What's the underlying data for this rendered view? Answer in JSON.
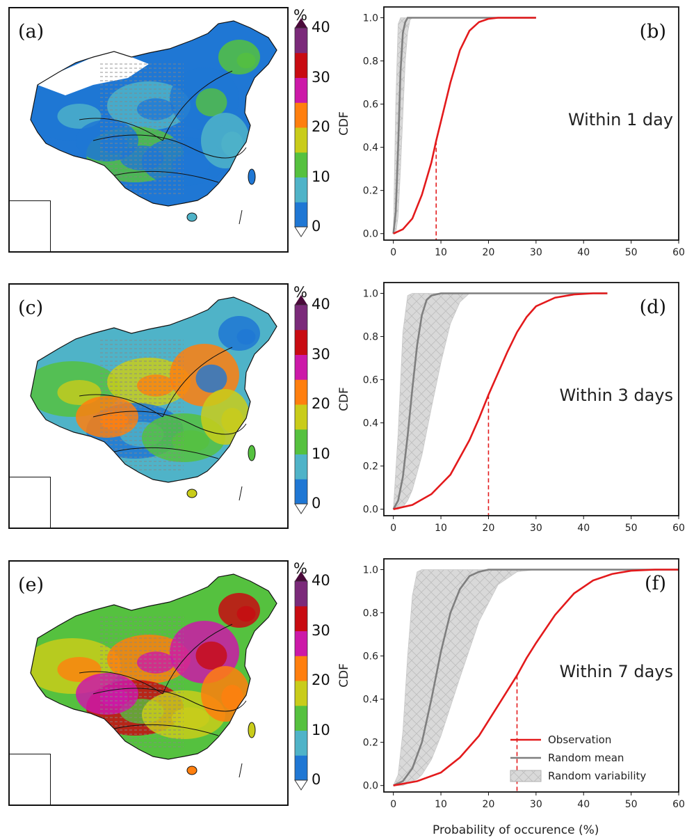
{
  "colors": {
    "observation": "#e31a1c",
    "random_mean": "#7f7f7f",
    "variability_fill": "#d9d9d9",
    "colorbar": [
      "#1f77d4",
      "#4fb3c8",
      "#55c13f",
      "#c9cc1a",
      "#ff7f0e",
      "#cc19a8",
      "#c80b12",
      "#7b2a7a",
      "#4a0a3a"
    ]
  },
  "maps": [
    {
      "letter": "(a)"
    },
    {
      "letter": "(c)"
    },
    {
      "letter": "(e)"
    }
  ],
  "colorbar": {
    "unit": "%",
    "ticks": [
      "0",
      "10",
      "20",
      "30",
      "40"
    ]
  },
  "chart_data": [
    {
      "type": "line",
      "panel_letter": "(b)",
      "annotation": "Within 1 day",
      "xlabel": "",
      "ylabel": "CDF",
      "xlim": [
        -2,
        60
      ],
      "ylim": [
        -0.03,
        1.05
      ],
      "xticks": [
        "0",
        "10",
        "20",
        "30",
        "40",
        "50",
        "60"
      ],
      "yticks": [
        "0.0",
        "0.2",
        "0.4",
        "0.6",
        "0.8",
        "1.0"
      ],
      "series": [
        {
          "name": "Observation",
          "x": [
            0,
            2,
            4,
            6,
            8,
            9,
            10,
            12,
            14,
            16,
            18,
            20,
            22,
            24,
            26,
            28,
            30
          ],
          "y": [
            0.0,
            0.02,
            0.07,
            0.18,
            0.33,
            0.43,
            0.52,
            0.7,
            0.85,
            0.94,
            0.98,
            0.995,
            1.0,
            1.0,
            1.0,
            1.0,
            1.0
          ]
        },
        {
          "name": "Random mean",
          "x": [
            0,
            0.5,
            1,
            1.5,
            2,
            2.5,
            3,
            4,
            30
          ],
          "y": [
            0.0,
            0.1,
            0.4,
            0.75,
            0.93,
            0.98,
            1.0,
            1.0,
            1.0
          ]
        }
      ],
      "variability_band": {
        "name": "Random variability",
        "x": [
          0,
          0.5,
          1,
          1.5,
          2,
          2.5,
          3,
          3.5,
          4
        ],
        "lower": [
          0.0,
          0.0,
          0.08,
          0.3,
          0.55,
          0.8,
          0.93,
          0.99,
          1.0
        ],
        "upper": [
          0.0,
          0.6,
          0.97,
          1.0,
          1.0,
          1.0,
          1.0,
          1.0,
          1.0
        ]
      },
      "dashed_marker": {
        "x": 9,
        "y": 0.43
      },
      "legend": false
    },
    {
      "type": "line",
      "panel_letter": "(d)",
      "annotation": "Within 3 days",
      "xlabel": "",
      "ylabel": "CDF",
      "xlim": [
        -2,
        60
      ],
      "ylim": [
        -0.03,
        1.05
      ],
      "xticks": [
        "0",
        "10",
        "20",
        "30",
        "40",
        "50",
        "60"
      ],
      "yticks": [
        "0.0",
        "0.2",
        "0.4",
        "0.6",
        "0.8",
        "1.0"
      ],
      "series": [
        {
          "name": "Observation",
          "x": [
            0,
            4,
            8,
            12,
            16,
            18,
            20,
            22,
            24,
            26,
            28,
            30,
            34,
            38,
            42,
            45
          ],
          "y": [
            0.0,
            0.02,
            0.07,
            0.16,
            0.32,
            0.42,
            0.53,
            0.63,
            0.73,
            0.82,
            0.89,
            0.94,
            0.98,
            0.995,
            1.0,
            1.0
          ]
        },
        {
          "name": "Random mean",
          "x": [
            0,
            1,
            2,
            3,
            4,
            5,
            6,
            7,
            8,
            10,
            45
          ],
          "y": [
            0.0,
            0.04,
            0.15,
            0.34,
            0.56,
            0.76,
            0.9,
            0.97,
            0.99,
            1.0,
            1.0
          ]
        }
      ],
      "variability_band": {
        "name": "Random variability",
        "x": [
          0,
          1,
          2,
          3,
          4,
          6,
          8,
          10,
          12,
          14,
          16
        ],
        "lower": [
          0.0,
          0.0,
          0.01,
          0.04,
          0.09,
          0.25,
          0.47,
          0.68,
          0.86,
          0.96,
          1.0
        ],
        "upper": [
          0.0,
          0.35,
          0.82,
          0.99,
          1.0,
          1.0,
          1.0,
          1.0,
          1.0,
          1.0,
          1.0
        ]
      },
      "dashed_marker": {
        "x": 20,
        "y": 0.53
      },
      "legend": false
    },
    {
      "type": "line",
      "panel_letter": "(f)",
      "annotation": "Within 7 days",
      "xlabel": "Probability of occurence (%)",
      "ylabel": "CDF",
      "xlim": [
        -2,
        60
      ],
      "ylim": [
        -0.03,
        1.05
      ],
      "xticks": [
        "0",
        "10",
        "20",
        "30",
        "40",
        "50",
        "60"
      ],
      "yticks": [
        "0.0",
        "0.2",
        "0.4",
        "0.6",
        "0.8",
        "1.0"
      ],
      "series": [
        {
          "name": "Observation",
          "x": [
            0,
            5,
            10,
            14,
            18,
            22,
            24,
            26,
            28,
            30,
            34,
            38,
            42,
            46,
            50,
            55,
            60
          ],
          "y": [
            0.0,
            0.02,
            0.06,
            0.13,
            0.23,
            0.37,
            0.44,
            0.51,
            0.59,
            0.66,
            0.79,
            0.89,
            0.95,
            0.98,
            0.995,
            1.0,
            1.0
          ]
        },
        {
          "name": "Random mean",
          "x": [
            0,
            2,
            4,
            6,
            8,
            10,
            12,
            14,
            16,
            18,
            20,
            24,
            60
          ],
          "y": [
            0.0,
            0.02,
            0.08,
            0.2,
            0.4,
            0.62,
            0.8,
            0.91,
            0.97,
            0.99,
            1.0,
            1.0,
            1.0
          ]
        },
        {
          "name": "Random variability",
          "x": [],
          "y": []
        }
      ],
      "variability_band": {
        "name": "Random variability",
        "x": [
          0,
          1,
          2,
          3,
          4,
          5,
          6,
          8,
          10,
          14,
          18,
          22,
          26,
          30
        ],
        "lower": [
          0.0,
          0.0,
          0.0,
          0.01,
          0.02,
          0.03,
          0.05,
          0.12,
          0.23,
          0.5,
          0.76,
          0.93,
          0.99,
          1.0
        ],
        "upper": [
          0.0,
          0.05,
          0.25,
          0.6,
          0.88,
          0.99,
          1.0,
          1.0,
          1.0,
          1.0,
          1.0,
          1.0,
          1.0,
          1.0
        ]
      },
      "dashed_marker": {
        "x": 26,
        "y": 0.51
      },
      "legend": true,
      "legend_position": "lower-right"
    }
  ]
}
